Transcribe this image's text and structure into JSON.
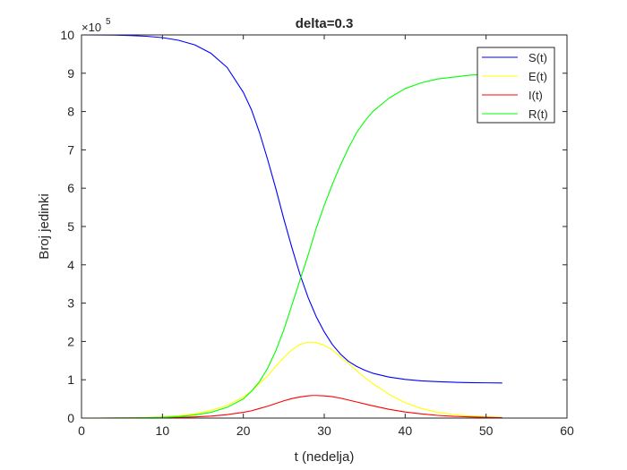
{
  "chart_data": {
    "type": "line",
    "title": "delta=0.3",
    "xlabel": "t (nedelja)",
    "ylabel": "Broj jedinki",
    "xlim": [
      0,
      60
    ],
    "ylim": [
      0,
      10
    ],
    "xticks": [
      "0",
      "10",
      "20",
      "30",
      "40",
      "50",
      "60"
    ],
    "yticks": [
      "0",
      "1",
      "2",
      "3",
      "4",
      "5",
      "6",
      "7",
      "8",
      "9",
      "10"
    ],
    "y_multiplier": {
      "base": "×10",
      "exponent": "5"
    },
    "grid": false,
    "legend_position": "top-right",
    "x": [
      0,
      2,
      4,
      6,
      8,
      10,
      12,
      14,
      16,
      18,
      20,
      21,
      22,
      23,
      24,
      25,
      26,
      27,
      28,
      28.5,
      29,
      30,
      31,
      32,
      33,
      34,
      35,
      36,
      38,
      40,
      42,
      44,
      46,
      48,
      50,
      52
    ],
    "series": [
      {
        "name": "S(t)",
        "color": "#0000ff",
        "values": [
          10,
          9.999,
          9.995,
          9.985,
          9.965,
          9.93,
          9.86,
          9.74,
          9.52,
          9.15,
          8.5,
          8.05,
          7.45,
          6.75,
          6.0,
          5.2,
          4.45,
          3.75,
          3.15,
          2.9,
          2.65,
          2.25,
          1.92,
          1.67,
          1.48,
          1.35,
          1.25,
          1.17,
          1.07,
          1.01,
          0.97,
          0.95,
          0.935,
          0.925,
          0.92,
          0.915
        ]
      },
      {
        "name": "E(t)",
        "color": "#ffff00",
        "values": [
          0,
          0.001,
          0.003,
          0.008,
          0.016,
          0.03,
          0.06,
          0.11,
          0.2,
          0.33,
          0.55,
          0.7,
          0.9,
          1.1,
          1.35,
          1.58,
          1.78,
          1.92,
          1.98,
          1.98,
          1.97,
          1.9,
          1.78,
          1.6,
          1.42,
          1.24,
          1.06,
          0.9,
          0.62,
          0.4,
          0.25,
          0.15,
          0.09,
          0.055,
          0.035,
          0.02
        ]
      },
      {
        "name": "I(t)",
        "color": "#ff0000",
        "values": [
          0,
          0,
          0.001,
          0.002,
          0.004,
          0.008,
          0.015,
          0.03,
          0.05,
          0.09,
          0.15,
          0.19,
          0.25,
          0.31,
          0.38,
          0.45,
          0.51,
          0.55,
          0.58,
          0.59,
          0.59,
          0.58,
          0.56,
          0.52,
          0.47,
          0.42,
          0.37,
          0.32,
          0.23,
          0.16,
          0.11,
          0.07,
          0.045,
          0.03,
          0.02,
          0.012
        ]
      },
      {
        "name": "R(t)",
        "color": "#00ff00",
        "values": [
          0,
          0,
          0.001,
          0.004,
          0.01,
          0.02,
          0.04,
          0.08,
          0.15,
          0.28,
          0.5,
          0.7,
          0.95,
          1.3,
          1.75,
          2.3,
          2.95,
          3.6,
          4.25,
          4.6,
          4.95,
          5.55,
          6.1,
          6.6,
          7.05,
          7.45,
          7.75,
          8.0,
          8.35,
          8.6,
          8.75,
          8.85,
          8.9,
          8.95,
          8.97,
          8.98
        ]
      }
    ]
  }
}
